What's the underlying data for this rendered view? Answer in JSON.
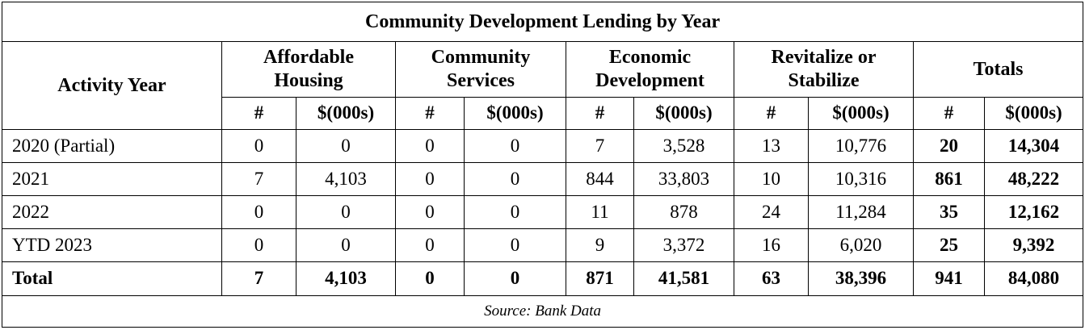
{
  "title": "Community Development Lending by Year",
  "row_header": "Activity Year",
  "groups": [
    {
      "label_line1": "Affordable",
      "label_line2": "Housing"
    },
    {
      "label_line1": "Community",
      "label_line2": "Services"
    },
    {
      "label_line1": "Economic",
      "label_line2": "Development"
    },
    {
      "label_line1": "Revitalize or",
      "label_line2": "Stabilize"
    },
    {
      "label_line1": "Totals",
      "label_line2": ""
    }
  ],
  "subheaders": [
    "#",
    "$(000s)",
    "#",
    "$(000s)",
    "#",
    "$(000s)",
    "#",
    "$(000s)",
    "#",
    "$(000s)"
  ],
  "rows": [
    {
      "year": "2020 (Partial)",
      "values": [
        "0",
        "0",
        "0",
        "0",
        "7",
        "3,528",
        "13",
        "10,776",
        "20",
        "14,304"
      ]
    },
    {
      "year": "2021",
      "values": [
        "7",
        "4,103",
        "0",
        "0",
        "844",
        "33,803",
        "10",
        "10,316",
        "861",
        "48,222"
      ]
    },
    {
      "year": "2022",
      "values": [
        "0",
        "0",
        "0",
        "0",
        "11",
        "878",
        "24",
        "11,284",
        "35",
        "12,162"
      ]
    },
    {
      "year": "YTD 2023",
      "values": [
        "0",
        "0",
        "0",
        "0",
        "9",
        "3,372",
        "16",
        "6,020",
        "25",
        "9,392"
      ]
    }
  ],
  "total_row": {
    "label": "Total",
    "values": [
      "7",
      "4,103",
      "0",
      "0",
      "871",
      "41,581",
      "63",
      "38,396",
      "941",
      "84,080"
    ]
  },
  "source": "Source:  Bank Data"
}
